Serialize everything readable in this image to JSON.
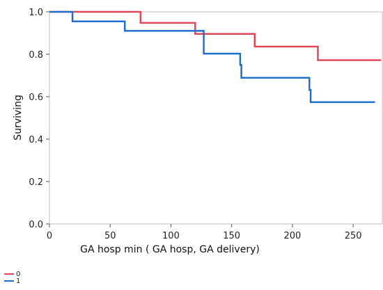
{
  "chart_data": {
    "type": "line",
    "step": true,
    "xlabel": "GA hosp min ( GA hosp, GA delivery)",
    "ylabel": "Surviving",
    "xlim": [
      0,
      274
    ],
    "ylim": [
      0,
      1.0
    ],
    "xticks": [
      0,
      50,
      100,
      150,
      200,
      250
    ],
    "yticks": [
      0.0,
      0.2,
      0.4,
      0.6,
      0.8,
      1.0
    ],
    "x_tick_labels": [
      "0",
      "50",
      "100",
      "150",
      "200",
      "250"
    ],
    "y_tick_labels": [
      "0.0",
      "0.2",
      "0.4",
      "0.6",
      "0.8",
      "1.0"
    ],
    "grid": false,
    "legend_position": "bottom-left",
    "series": [
      {
        "name": "0",
        "color": "#e0475b",
        "x": [
          0,
          75,
          120,
          169,
          221,
          273
        ],
        "y": [
          1.0,
          0.948,
          0.896,
          0.836,
          0.772,
          0.772
        ]
      },
      {
        "name": "1",
        "color": "#1f6fd0",
        "x": [
          0,
          19,
          62,
          127,
          157,
          158,
          214,
          215,
          268
        ],
        "y": [
          1.0,
          0.955,
          0.91,
          0.803,
          0.75,
          0.689,
          0.632,
          0.574,
          0.574
        ]
      }
    ]
  }
}
